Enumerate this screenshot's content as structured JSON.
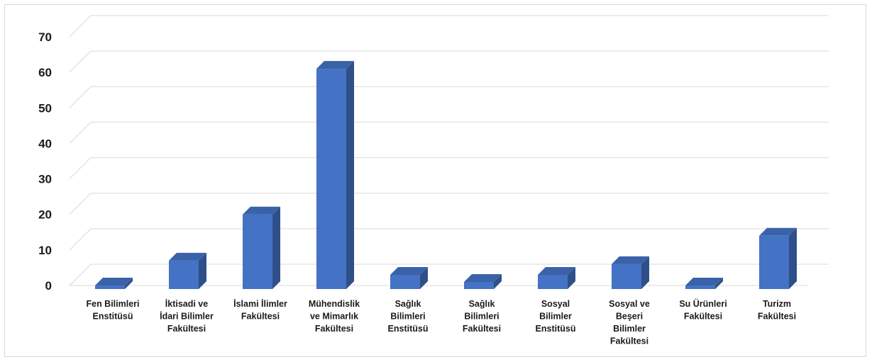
{
  "chart_data": {
    "type": "bar",
    "categories": [
      [
        "Fen Bilimleri",
        "Enstitüsü"
      ],
      [
        "İktisadi ve",
        "İdari Bilimler",
        "Fakültesi"
      ],
      [
        "İslami İlimler",
        "Fakültesi"
      ],
      [
        "Mühendislik",
        "ve Mimarlık",
        "Fakültesi"
      ],
      [
        "Sağlık",
        "Bilimleri",
        "Enstitüsü"
      ],
      [
        "Sağlık",
        "Bilimleri",
        "Fakültesi"
      ],
      [
        "Sosyal",
        "Bilimler",
        "Enstitüsü"
      ],
      [
        "Sosyal ve",
        "Beşeri",
        "Bilimler",
        "Fakültesi"
      ],
      [
        "Su Ürünleri",
        "Fakültesi"
      ],
      [
        "Turizm",
        "Fakültesi"
      ]
    ],
    "values": [
      1,
      8,
      21,
      62,
      4,
      2,
      4,
      7,
      1,
      15
    ],
    "ylim": [
      0,
      70
    ],
    "yticks": [
      0,
      10,
      20,
      30,
      40,
      50,
      60,
      70
    ],
    "grid": true,
    "style": "3d-column",
    "colors": {
      "front": "#4472c4",
      "side": "#2f4f8a",
      "top": "#3a62a8",
      "grid": "#d9d9d9"
    }
  }
}
